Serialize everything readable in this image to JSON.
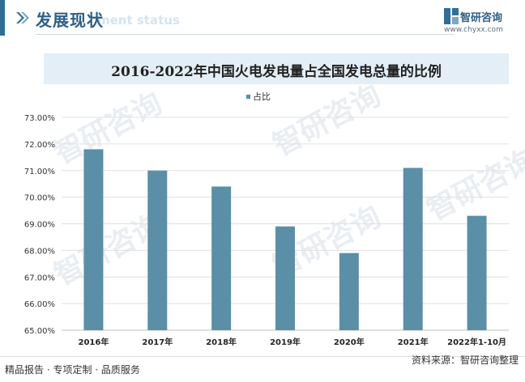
{
  "header": {
    "title": "发展现状",
    "subtitle": "ment status"
  },
  "logo": {
    "name": "智研咨询",
    "url": "www.chyxx.com"
  },
  "watermark": "智研咨询",
  "colors": {
    "bar": "#5b8fa8",
    "accent": "#2f6f96",
    "title_bg": "#e3eef6"
  },
  "chart_data": {
    "type": "bar",
    "title": "2016-2022年中国火电发电量占全国发电总量的比例",
    "categories": [
      "2016年",
      "2017年",
      "2018年",
      "2019年",
      "2020年",
      "2021年",
      "2022年1-10月"
    ],
    "series": [
      {
        "name": "占比",
        "values": [
          71.8,
          71.0,
          70.4,
          68.9,
          67.9,
          71.1,
          69.3
        ]
      }
    ],
    "yticks": [
      "65.00%",
      "66.00%",
      "67.00%",
      "68.00%",
      "69.00%",
      "70.00%",
      "71.00%",
      "72.00%",
      "73.00%"
    ],
    "ylim": [
      65,
      73
    ],
    "grid": true,
    "legend": "top-center"
  },
  "footer": {
    "left": "精品报告 · 专项定制 · 品质服务",
    "right": "资料来源：智研咨询整理"
  }
}
